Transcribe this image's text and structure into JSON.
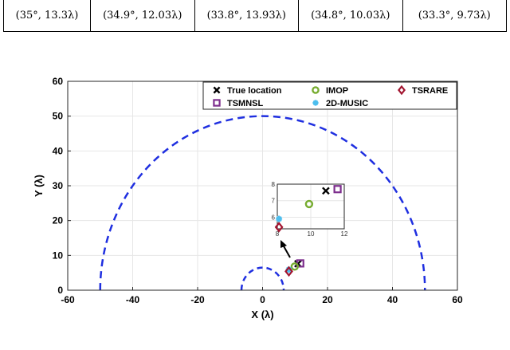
{
  "table": {
    "cells": [
      "(35°, 13.3λ)",
      "(34.9°, 12.03λ)",
      "(33.8°, 13.93λ)",
      "(34.8°, 10.03λ)",
      "(33.3°, 9.73λ)"
    ]
  },
  "colors": {
    "arc": "#1f2fe0",
    "true_location": "#000000",
    "imop": "#77ac30",
    "tsrare": "#a2142f",
    "tsmnsl": "#7e2f8e",
    "music": "#4dbeee",
    "grid": "#e6e6e6"
  },
  "chart_data": {
    "type": "scatter",
    "xlabel": "X (λ)",
    "ylabel": "Y (λ)",
    "xlim": [
      -60,
      60
    ],
    "ylim": [
      0,
      60
    ],
    "xticks": [
      -60,
      -40,
      -20,
      0,
      20,
      40,
      60
    ],
    "yticks": [
      0,
      10,
      20,
      30,
      40,
      50,
      60
    ],
    "grid": true,
    "legend_position": "top-right",
    "arcs": [
      {
        "shape": "semicircle",
        "center": [
          0,
          0
        ],
        "radius": 50,
        "style": "dashed"
      },
      {
        "shape": "semicircle",
        "center": [
          0,
          0
        ],
        "radius": 6.5,
        "style": "dashed"
      }
    ],
    "series": [
      {
        "name": "True location",
        "marker": "x",
        "points": [
          [
            10.9,
            7.6
          ]
        ]
      },
      {
        "name": "TSMNSL",
        "marker": "square",
        "points": [
          [
            11.6,
            7.7
          ]
        ]
      },
      {
        "name": "IMOP",
        "marker": "circle",
        "points": [
          [
            9.9,
            6.8
          ]
        ]
      },
      {
        "name": "2D-MUSIC",
        "marker": "asterisk",
        "points": [
          [
            8.1,
            5.9
          ]
        ]
      },
      {
        "name": "TSRARE",
        "marker": "diamond",
        "points": [
          [
            8.1,
            5.4
          ]
        ]
      }
    ],
    "inset": {
      "xlim": [
        8,
        12
      ],
      "ylim": [
        5.3,
        8
      ],
      "xticks": [
        8,
        10,
        12
      ],
      "yticks": [
        6,
        7,
        8
      ],
      "xtick_labels": [
        "8",
        "10",
        "12"
      ],
      "ytick_labels": [
        "6",
        "7",
        "8"
      ]
    }
  }
}
